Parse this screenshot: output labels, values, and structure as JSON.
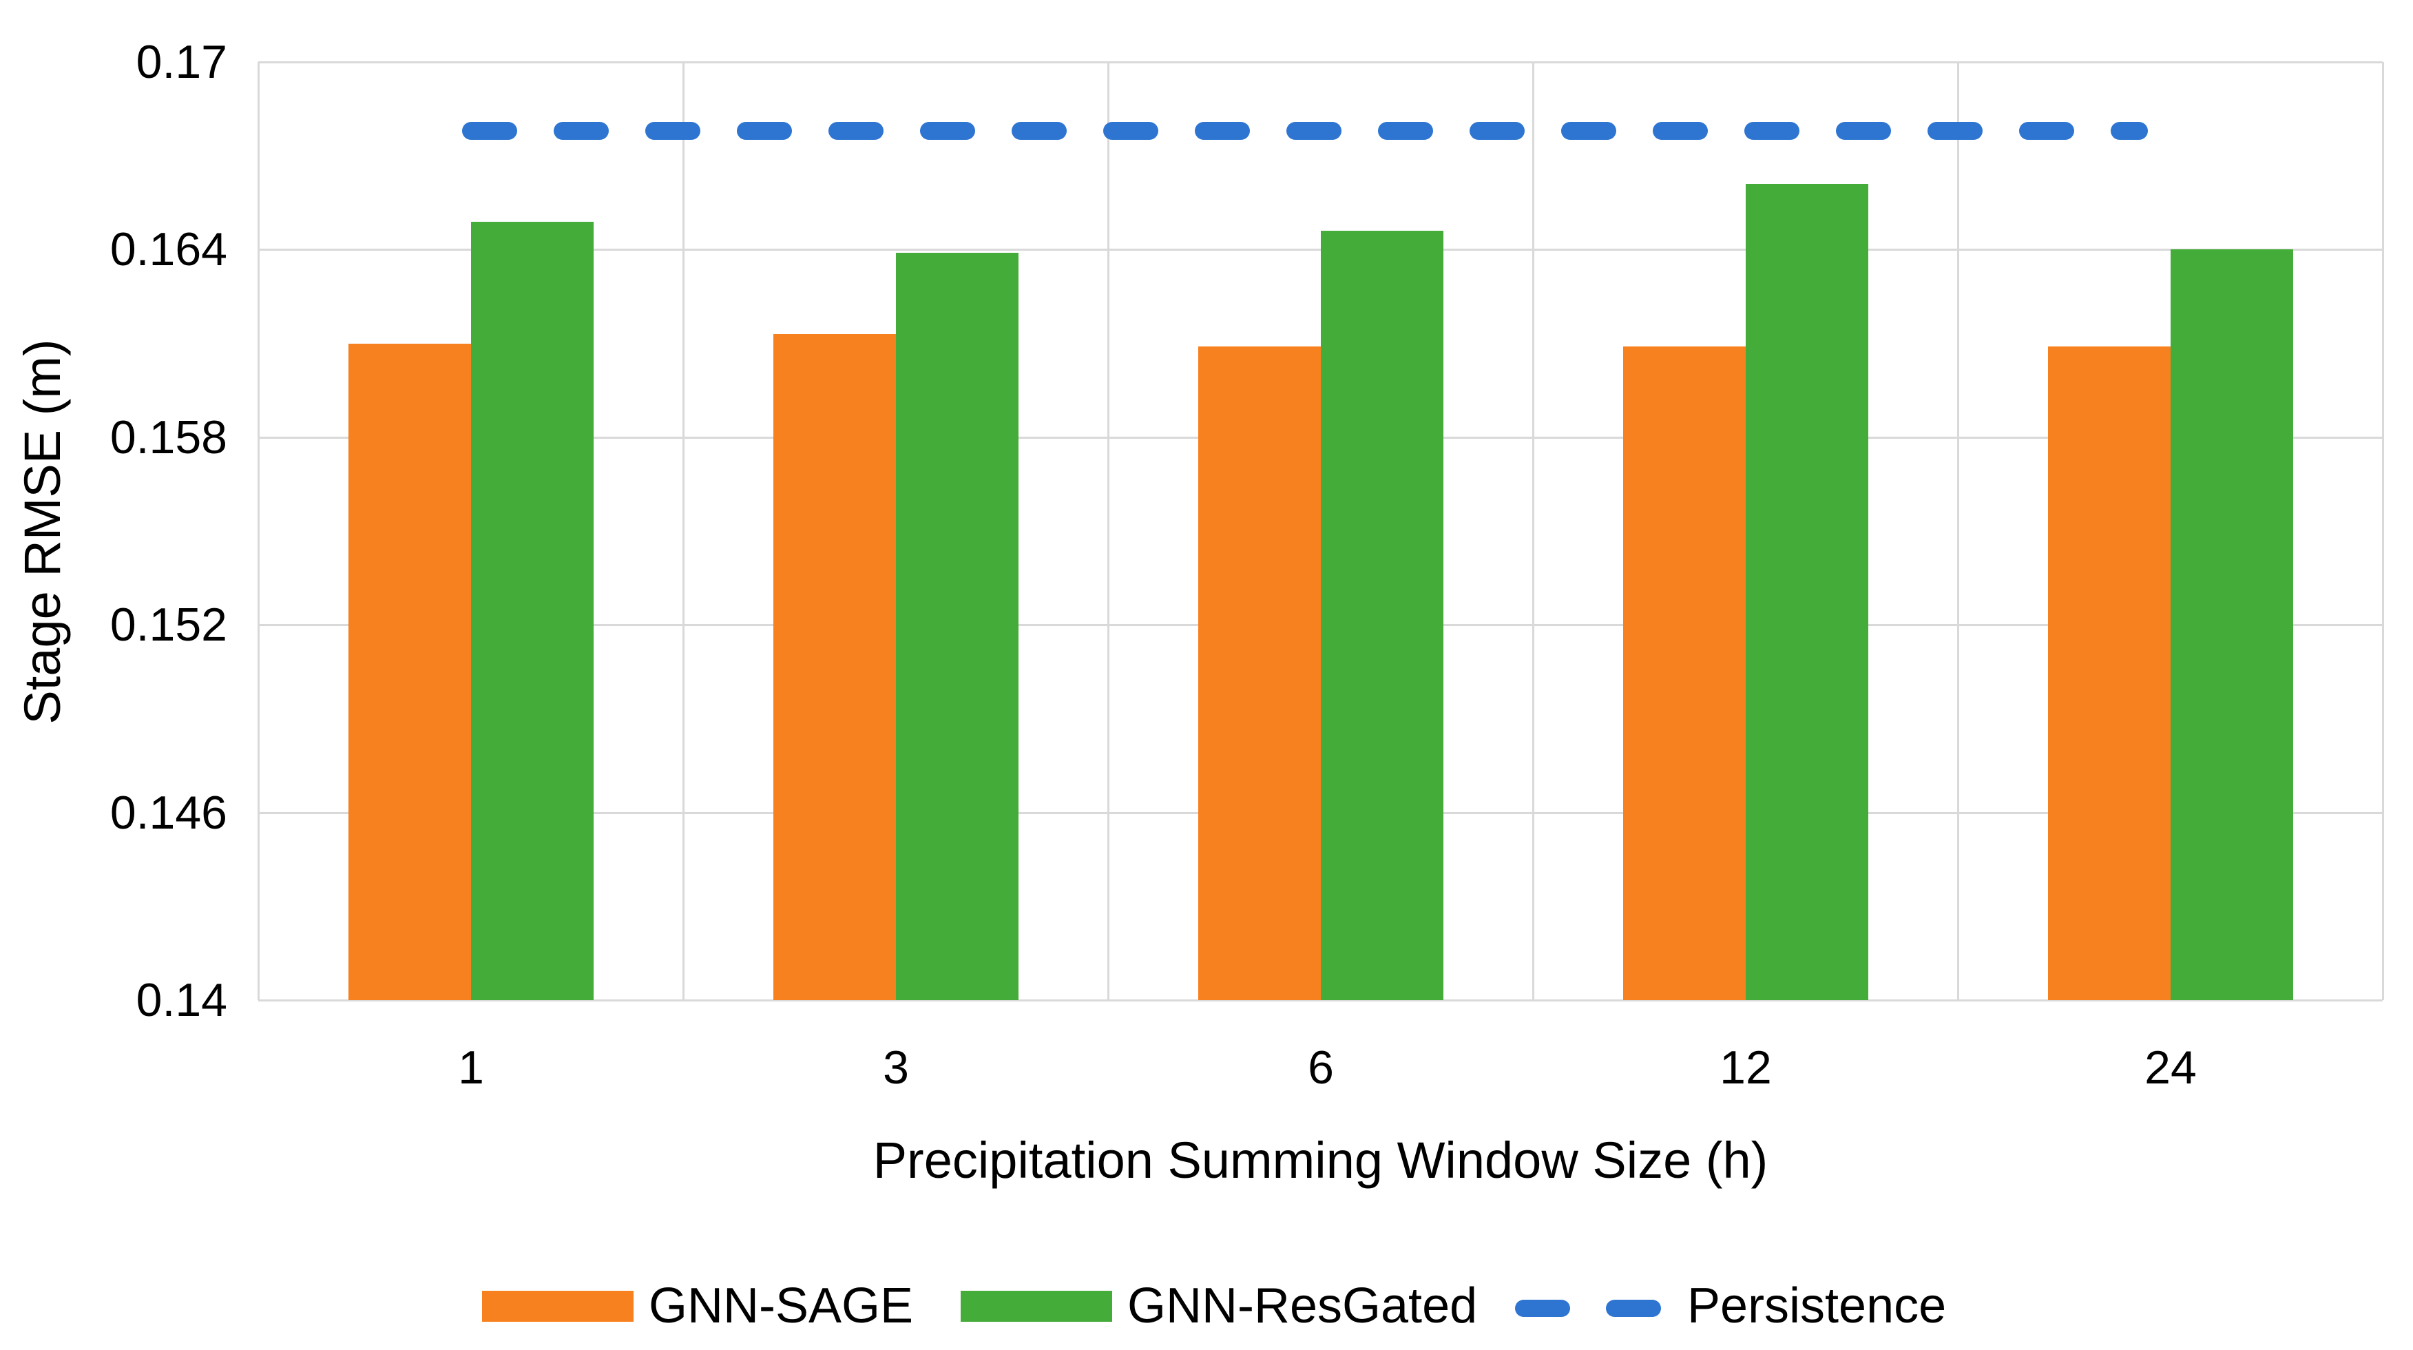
{
  "chart_data": {
    "type": "bar",
    "title": "",
    "categories": [
      "1",
      "3",
      "6",
      "12",
      "24"
    ],
    "series": [
      {
        "name": "GNN-SAGE",
        "type": "bar",
        "color": "#F8811F",
        "values": [
          0.161,
          0.1613,
          0.1609,
          0.1609,
          0.1609
        ]
      },
      {
        "name": "GNN-ResGated",
        "type": "bar",
        "color": "#44AC39",
        "values": [
          0.1649,
          0.1639,
          0.1646,
          0.1661,
          0.164
        ]
      },
      {
        "name": "Persistence",
        "type": "dashed-line",
        "color": "#2E75D2",
        "value": 0.1678
      }
    ],
    "xlabel": "Precipitation Summing Window Size (h)",
    "ylabel": "Stage RMSE (m)",
    "ylim": [
      0.14,
      0.17
    ],
    "yticks": [
      "0.17",
      "0.164",
      "0.158",
      "0.152",
      "0.146",
      "0.14"
    ],
    "ytick_values": [
      0.17,
      0.164,
      0.158,
      0.152,
      0.146,
      0.14
    ],
    "grid": true,
    "gridline_color": "#D9D9D9",
    "legend_position": "bottom"
  }
}
